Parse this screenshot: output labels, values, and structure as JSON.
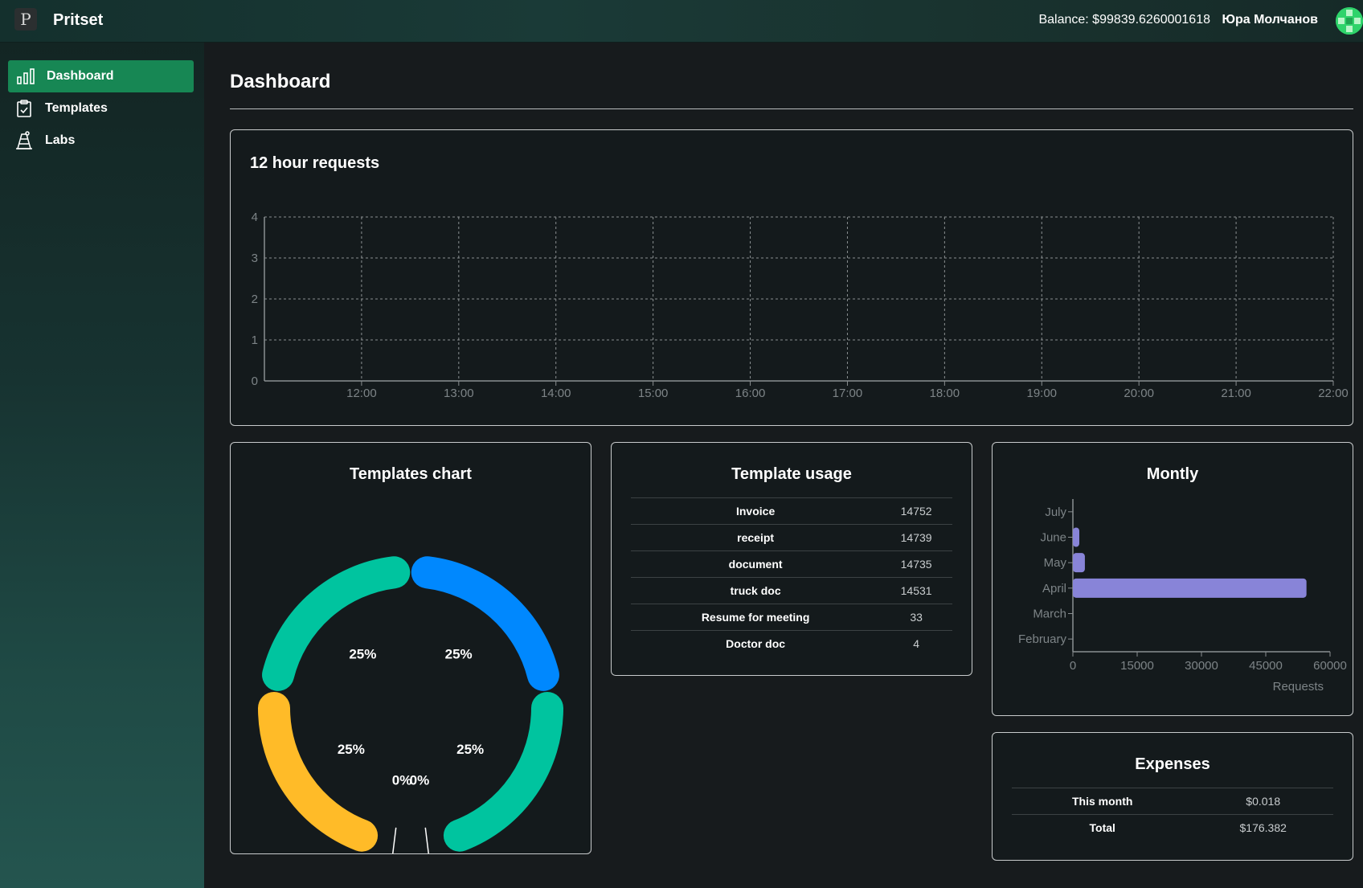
{
  "app": {
    "logo_letter": "P",
    "title": "Pritset",
    "balance": "Balance: $99839.6260001618",
    "user_name": "Юра Молчанов"
  },
  "sidebar": {
    "items": [
      {
        "label": "Dashboard",
        "icon": "bar-chart-icon",
        "active": true
      },
      {
        "label": "Templates",
        "icon": "clipboard-icon",
        "active": false
      },
      {
        "label": "Labs",
        "icon": "lab-icon",
        "active": false
      }
    ]
  },
  "main": {
    "title": "Dashboard"
  },
  "requests_card": {
    "title": "12 hour requests",
    "chart_data": {
      "type": "line",
      "x": [
        "12:00",
        "13:00",
        "14:00",
        "15:00",
        "16:00",
        "17:00",
        "18:00",
        "19:00",
        "20:00",
        "21:00",
        "22:00"
      ],
      "series": [],
      "y_ticks": [
        "0",
        "1",
        "2",
        "3",
        "4"
      ],
      "ylim": [
        0,
        4
      ],
      "grid": true
    }
  },
  "templates_chart_card": {
    "title": "Templates chart",
    "chart_data": {
      "type": "pie",
      "slices": [
        {
          "label": "25%",
          "value": 25,
          "color": "#0088fe"
        },
        {
          "label": "25%",
          "value": 25,
          "color": "#00c49f"
        },
        {
          "label": "0%",
          "value": 0,
          "color": "#ffffff"
        },
        {
          "label": "0%",
          "value": 0,
          "color": "#ffffff"
        },
        {
          "label": "25%",
          "value": 25,
          "color": "#ffbb28"
        },
        {
          "label": "25%",
          "value": 25,
          "color": "#00c49f"
        }
      ]
    }
  },
  "usage_card": {
    "title": "Template usage",
    "rows": [
      {
        "name": "Invoice",
        "value": "14752"
      },
      {
        "name": "receipt",
        "value": "14739"
      },
      {
        "name": "document",
        "value": "14735"
      },
      {
        "name": "truck doc",
        "value": "14531"
      },
      {
        "name": "Resume for meeting",
        "value": "33"
      },
      {
        "name": "Doctor doc",
        "value": "4"
      }
    ]
  },
  "monthly_card": {
    "title": "Montly",
    "chart_data": {
      "type": "bar",
      "orientation": "horizontal",
      "categories": [
        "July",
        "June",
        "May",
        "April",
        "March",
        "February"
      ],
      "values": [
        0,
        1500,
        2800,
        54500,
        0,
        0
      ],
      "xlim": [
        0,
        60000
      ],
      "x_ticks": [
        "0",
        "15000",
        "30000",
        "45000",
        "60000"
      ],
      "xlabel": "Requests",
      "bar_color": "#8884d8"
    }
  },
  "expenses_card": {
    "title": "Expenses",
    "rows": [
      {
        "name": "This month",
        "value": "$0.018"
      },
      {
        "name": "Total",
        "value": "$176.382"
      }
    ]
  }
}
